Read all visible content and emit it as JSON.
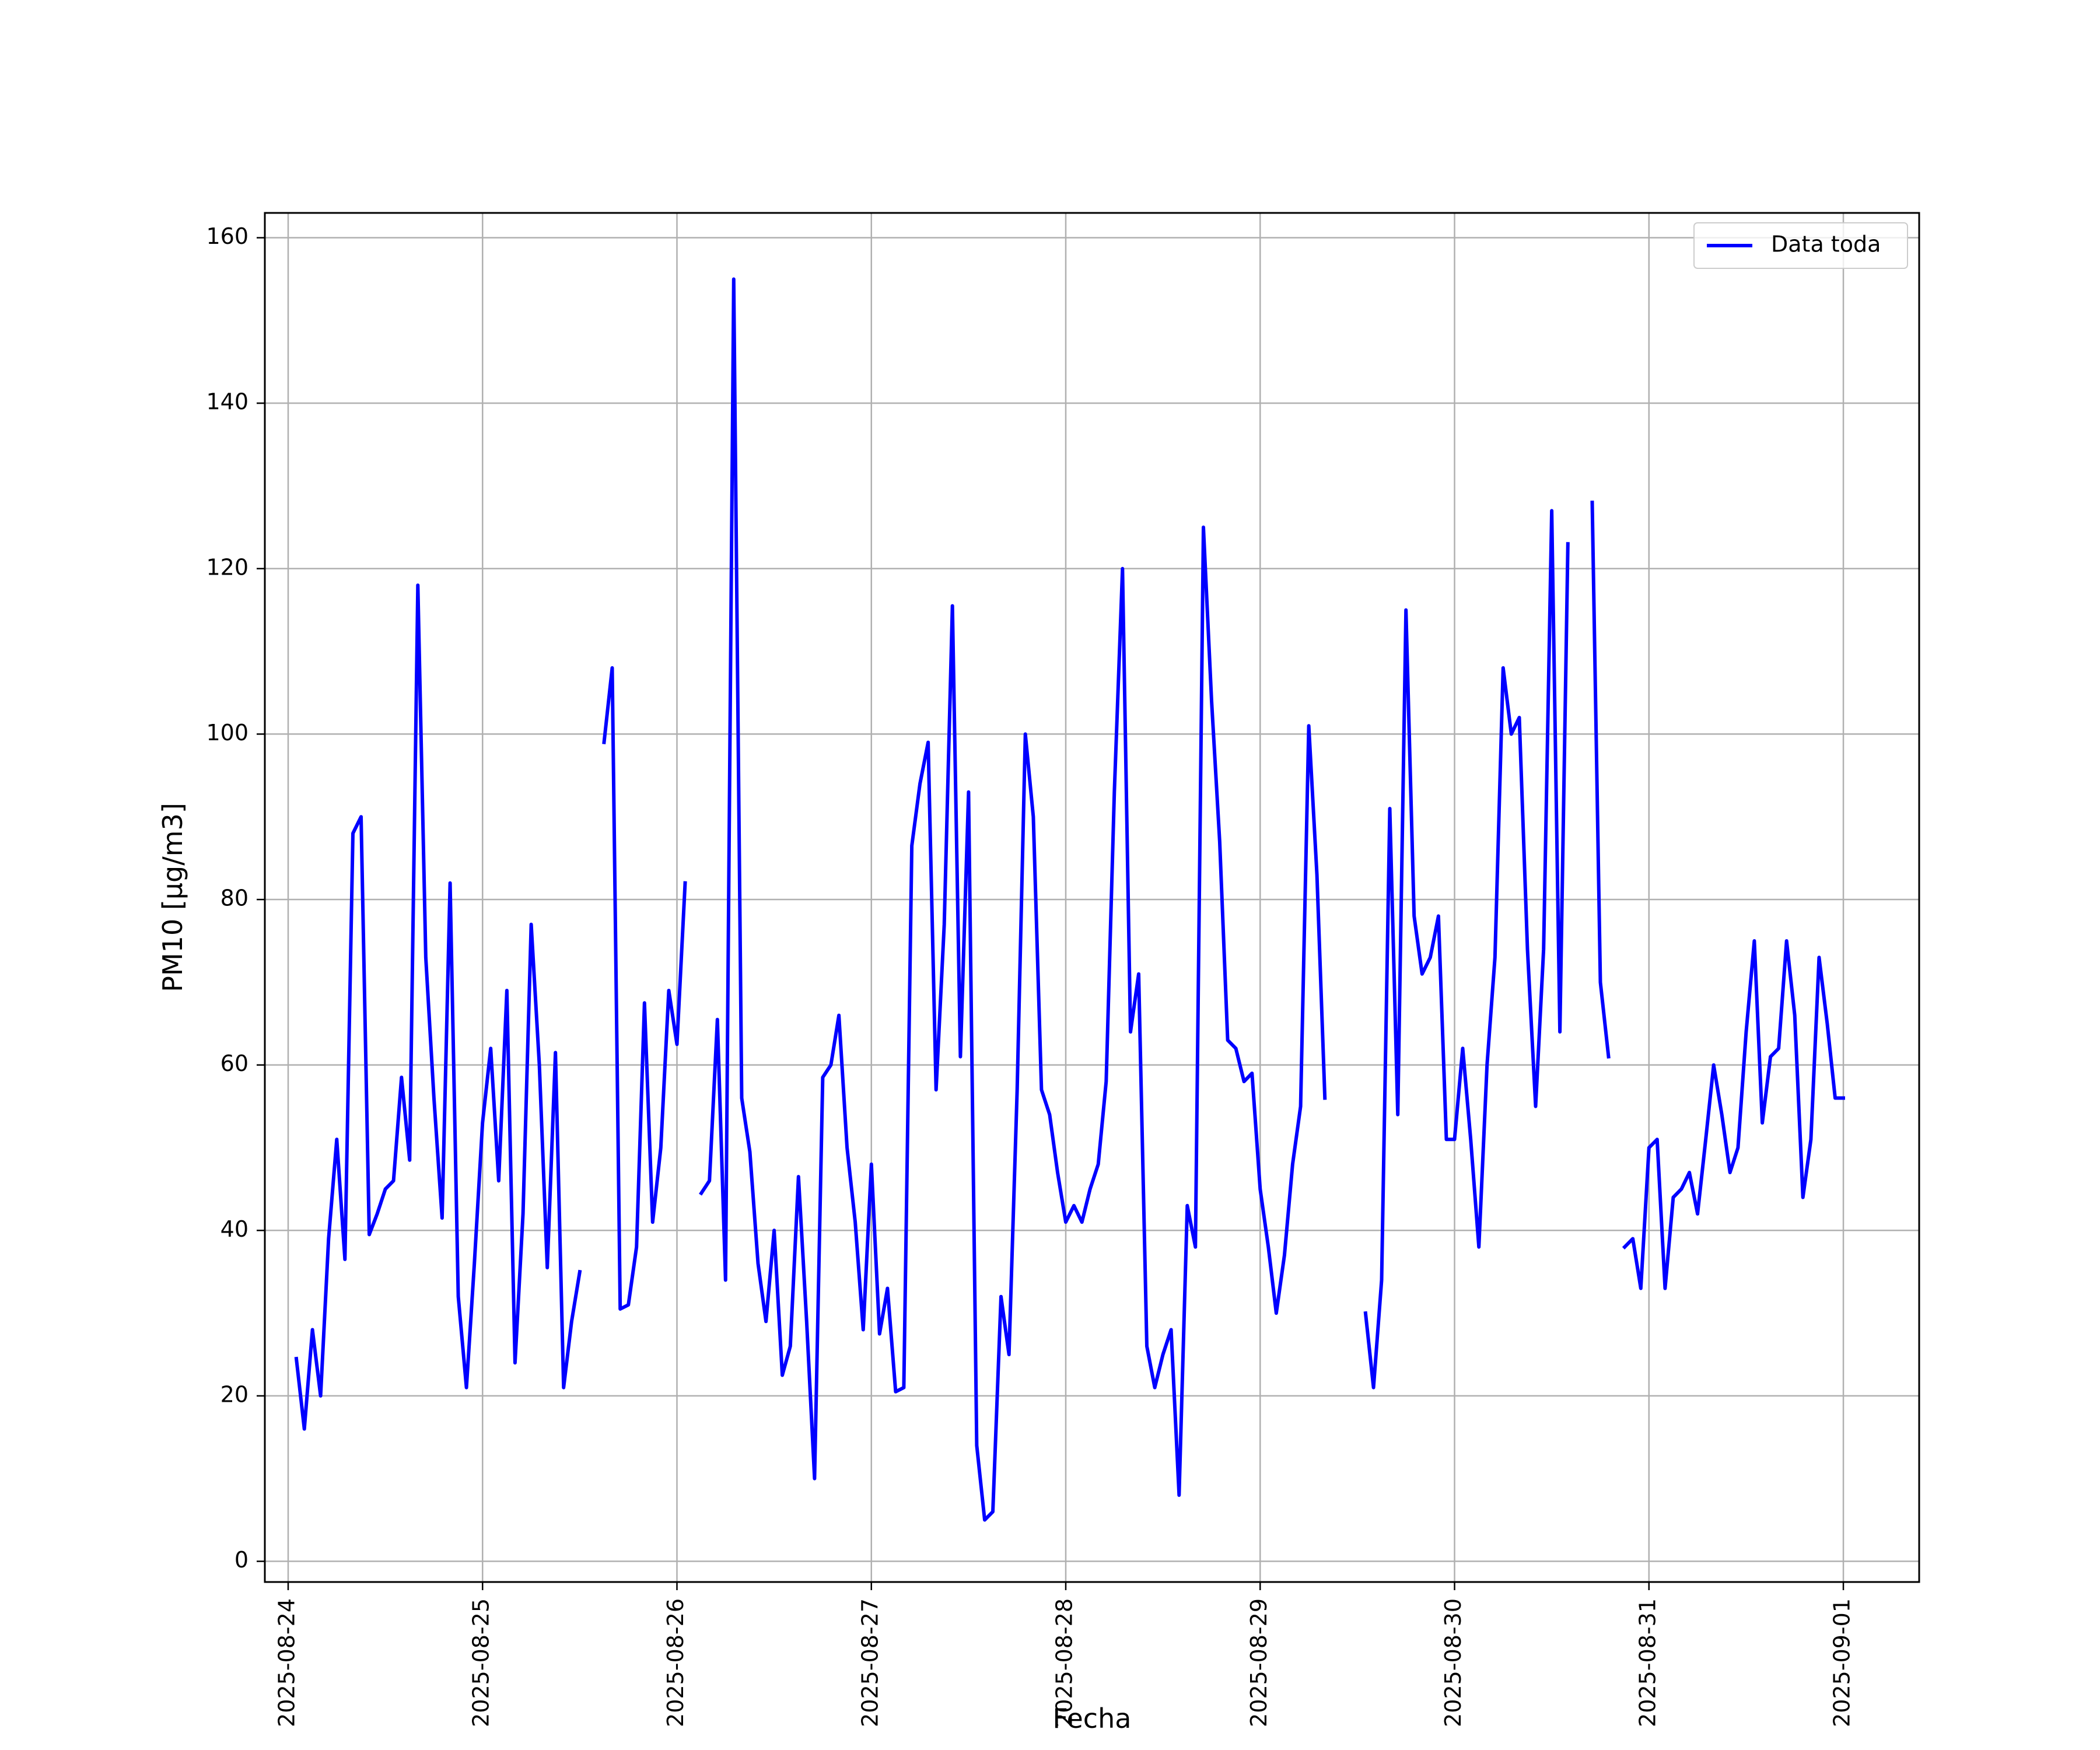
{
  "chart_data": {
    "type": "line",
    "xlabel": "Fecha",
    "ylabel": "PM10 [μg/m3]",
    "xlim": [
      -0.12,
      8.39
    ],
    "ylim": [
      -2.5,
      163
    ],
    "grid": true,
    "legend_position": "top-right",
    "x_ticks": [
      {
        "value": 0,
        "label": "2025-08-24"
      },
      {
        "value": 1,
        "label": "2025-08-25"
      },
      {
        "value": 2,
        "label": "2025-08-26"
      },
      {
        "value": 3,
        "label": "2025-08-27"
      },
      {
        "value": 4,
        "label": "2025-08-28"
      },
      {
        "value": 5,
        "label": "2025-08-29"
      },
      {
        "value": 6,
        "label": "2025-08-30"
      },
      {
        "value": 7,
        "label": "2025-08-31"
      },
      {
        "value": 8,
        "label": "2025-09-01"
      }
    ],
    "y_ticks": [
      0,
      20,
      40,
      60,
      80,
      100,
      120,
      140,
      160
    ],
    "series": [
      {
        "name": "Data toda",
        "color": "#0000ff",
        "x_unit": "days since 2025-08-24 00:00",
        "segments": [
          [
            [
              0.042,
              24.5
            ],
            [
              0.083,
              16
            ],
            [
              0.125,
              28
            ],
            [
              0.167,
              20
            ],
            [
              0.208,
              39
            ],
            [
              0.25,
              51
            ],
            [
              0.292,
              36.5
            ],
            [
              0.333,
              88
            ],
            [
              0.375,
              90
            ],
            [
              0.417,
              39.5
            ],
            [
              0.458,
              42
            ],
            [
              0.5,
              45
            ],
            [
              0.542,
              46
            ],
            [
              0.583,
              58.5
            ],
            [
              0.625,
              48.5
            ],
            [
              0.667,
              118
            ],
            [
              0.708,
              73
            ],
            [
              0.75,
              56
            ],
            [
              0.792,
              41.5
            ],
            [
              0.833,
              82
            ],
            [
              0.875,
              32
            ],
            [
              0.917,
              21
            ],
            [
              0.958,
              36
            ],
            [
              1.0,
              53
            ],
            [
              1.042,
              62
            ],
            [
              1.083,
              46
            ],
            [
              1.125,
              69
            ],
            [
              1.167,
              24
            ],
            [
              1.208,
              42
            ],
            [
              1.25,
              77
            ],
            [
              1.292,
              60
            ],
            [
              1.333,
              35.5
            ],
            [
              1.375,
              61.5
            ],
            [
              1.417,
              21
            ],
            [
              1.458,
              29
            ],
            [
              1.5,
              35
            ]
          ],
          [
            [
              1.625,
              99
            ],
            [
              1.667,
              108
            ],
            [
              1.708,
              30.5
            ],
            [
              1.75,
              31
            ],
            [
              1.792,
              38
            ],
            [
              1.833,
              67.5
            ],
            [
              1.875,
              41
            ],
            [
              1.917,
              50
            ],
            [
              1.958,
              69
            ],
            [
              2.0,
              62.5
            ],
            [
              2.042,
              82
            ]
          ],
          [
            [
              2.125,
              44.5
            ],
            [
              2.167,
              46
            ],
            [
              2.208,
              65.5
            ],
            [
              2.25,
              34
            ],
            [
              2.292,
              155
            ],
            [
              2.333,
              56
            ],
            [
              2.375,
              49.5
            ],
            [
              2.417,
              36
            ],
            [
              2.458,
              29
            ],
            [
              2.5,
              40
            ],
            [
              2.542,
              22.5
            ],
            [
              2.583,
              26
            ],
            [
              2.625,
              46.5
            ],
            [
              2.667,
              29
            ],
            [
              2.708,
              10
            ],
            [
              2.75,
              58.5
            ],
            [
              2.792,
              60
            ],
            [
              2.833,
              66
            ],
            [
              2.875,
              50
            ],
            [
              2.917,
              41
            ],
            [
              2.958,
              28
            ],
            [
              3.0,
              48
            ],
            [
              3.042,
              27.5
            ],
            [
              3.083,
              33
            ],
            [
              3.125,
              20.5
            ],
            [
              3.167,
              21
            ],
            [
              3.208,
              86.5
            ],
            [
              3.25,
              94
            ],
            [
              3.292,
              99
            ],
            [
              3.333,
              57
            ],
            [
              3.375,
              77
            ],
            [
              3.417,
              115.5
            ],
            [
              3.458,
              61
            ],
            [
              3.5,
              93
            ],
            [
              3.542,
              14
            ],
            [
              3.583,
              5
            ],
            [
              3.625,
              6
            ],
            [
              3.667,
              32
            ],
            [
              3.708,
              25
            ],
            [
              3.75,
              57
            ],
            [
              3.792,
              100
            ],
            [
              3.833,
              90
            ],
            [
              3.875,
              57
            ],
            [
              3.917,
              54
            ],
            [
              3.958,
              47
            ],
            [
              4.0,
              41
            ],
            [
              4.042,
              43
            ],
            [
              4.083,
              41
            ],
            [
              4.125,
              45
            ],
            [
              4.167,
              48
            ],
            [
              4.208,
              58
            ],
            [
              4.25,
              93
            ],
            [
              4.292,
              120
            ],
            [
              4.333,
              64
            ],
            [
              4.375,
              71
            ],
            [
              4.417,
              26
            ],
            [
              4.458,
              21
            ],
            [
              4.5,
              25
            ],
            [
              4.542,
              28
            ],
            [
              4.583,
              8
            ],
            [
              4.625,
              43
            ],
            [
              4.667,
              38
            ],
            [
              4.708,
              125
            ],
            [
              4.75,
              104
            ],
            [
              4.792,
              87
            ],
            [
              4.833,
              63
            ],
            [
              4.875,
              62
            ],
            [
              4.917,
              58
            ],
            [
              4.958,
              59
            ],
            [
              5.0,
              45
            ],
            [
              5.042,
              38
            ],
            [
              5.083,
              30
            ],
            [
              5.125,
              37
            ],
            [
              5.167,
              48
            ],
            [
              5.208,
              55
            ],
            [
              5.25,
              101
            ],
            [
              5.292,
              83
            ],
            [
              5.333,
              56
            ]
          ],
          [
            [
              5.542,
              30
            ],
            [
              5.583,
              21
            ],
            [
              5.625,
              34
            ],
            [
              5.667,
              91
            ],
            [
              5.708,
              54
            ],
            [
              5.75,
              115
            ],
            [
              5.792,
              78
            ],
            [
              5.833,
              71
            ],
            [
              5.875,
              73
            ],
            [
              5.917,
              78
            ],
            [
              5.958,
              51
            ],
            [
              6.0,
              51
            ],
            [
              6.042,
              62
            ],
            [
              6.083,
              51
            ],
            [
              6.125,
              38
            ],
            [
              6.167,
              60
            ],
            [
              6.208,
              73
            ],
            [
              6.25,
              108
            ],
            [
              6.292,
              100
            ],
            [
              6.333,
              102
            ],
            [
              6.375,
              74
            ],
            [
              6.417,
              55
            ],
            [
              6.458,
              74
            ],
            [
              6.5,
              127
            ],
            [
              6.542,
              64
            ],
            [
              6.583,
              123
            ]
          ],
          [
            [
              6.708,
              128
            ],
            [
              6.75,
              70
            ],
            [
              6.792,
              61
            ]
          ],
          [
            [
              6.875,
              38
            ],
            [
              6.917,
              39
            ],
            [
              6.958,
              33
            ],
            [
              7.0,
              50
            ],
            [
              7.042,
              51
            ],
            [
              7.083,
              33
            ],
            [
              7.125,
              44
            ],
            [
              7.167,
              45
            ],
            [
              7.208,
              47
            ],
            [
              7.25,
              42
            ],
            [
              7.292,
              51
            ],
            [
              7.333,
              60
            ],
            [
              7.375,
              54
            ],
            [
              7.417,
              47
            ],
            [
              7.458,
              50
            ],
            [
              7.5,
              64
            ],
            [
              7.542,
              75
            ],
            [
              7.583,
              53
            ],
            [
              7.625,
              61
            ],
            [
              7.667,
              62
            ],
            [
              7.708,
              75
            ],
            [
              7.75,
              66
            ],
            [
              7.792,
              44
            ],
            [
              7.833,
              51
            ],
            [
              7.875,
              73
            ],
            [
              7.917,
              65
            ],
            [
              7.958,
              56
            ],
            [
              8.0,
              56
            ]
          ]
        ]
      }
    ]
  }
}
